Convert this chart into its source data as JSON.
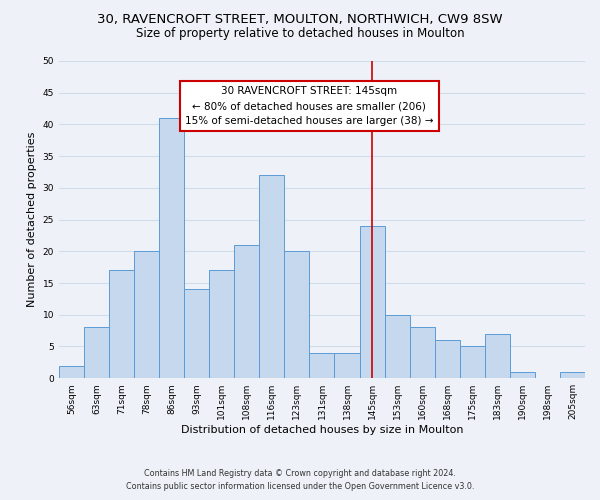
{
  "title": "30, RAVENCROFT STREET, MOULTON, NORTHWICH, CW9 8SW",
  "subtitle": "Size of property relative to detached houses in Moulton",
  "xlabel": "Distribution of detached houses by size in Moulton",
  "ylabel": "Number of detached properties",
  "bar_labels": [
    "56sqm",
    "63sqm",
    "71sqm",
    "78sqm",
    "86sqm",
    "93sqm",
    "101sqm",
    "108sqm",
    "116sqm",
    "123sqm",
    "131sqm",
    "138sqm",
    "145sqm",
    "153sqm",
    "160sqm",
    "168sqm",
    "175sqm",
    "183sqm",
    "190sqm",
    "198sqm",
    "205sqm"
  ],
  "bar_values": [
    2,
    8,
    17,
    20,
    41,
    14,
    17,
    21,
    32,
    20,
    4,
    4,
    24,
    10,
    8,
    6,
    5,
    7,
    1,
    0,
    1
  ],
  "bar_color": "#c5d8ed",
  "bar_edge_color": "#5b9bd5",
  "grid_color": "#d0dcea",
  "background_color": "#eef2f8",
  "vline_x_index": 12,
  "vline_color": "#cc0000",
  "ylim": [
    0,
    50
  ],
  "yticks": [
    0,
    5,
    10,
    15,
    20,
    25,
    30,
    35,
    40,
    45,
    50
  ],
  "annotation_title": "30 RAVENCROFT STREET: 145sqm",
  "annotation_line1": "← 80% of detached houses are smaller (206)",
  "annotation_line2": "15% of semi-detached houses are larger (38) →",
  "annotation_box_color": "#ffffff",
  "annotation_box_edge": "#cc0000",
  "footer_line1": "Contains HM Land Registry data © Crown copyright and database right 2024.",
  "footer_line2": "Contains public sector information licensed under the Open Government Licence v3.0.",
  "title_fontsize": 9.5,
  "subtitle_fontsize": 8.5,
  "axis_label_fontsize": 8,
  "tick_fontsize": 6.5,
  "annotation_fontsize": 7.5,
  "footer_fontsize": 5.8
}
